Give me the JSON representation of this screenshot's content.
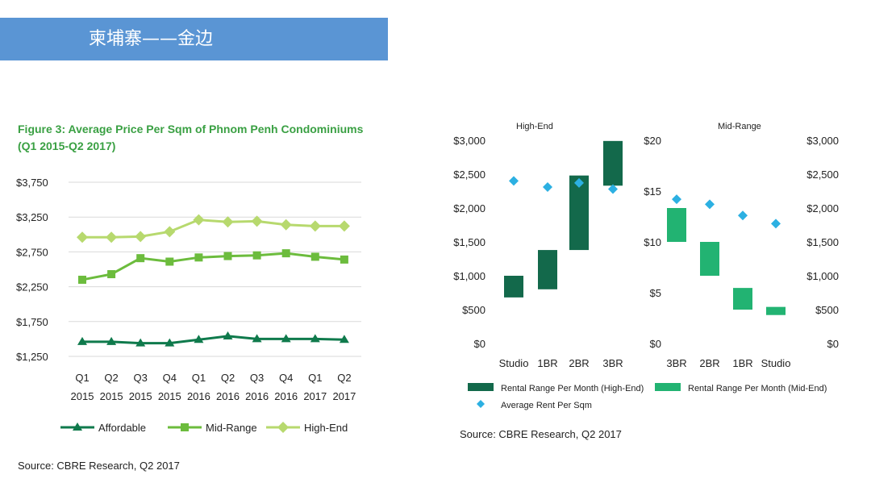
{
  "banner": {
    "title": "柬埔寨——金边"
  },
  "chart_data": [
    {
      "type": "line",
      "title": "Figure 3: Average Price Per Sqm of Phnom Penh Condominiums",
      "subtitle": "(Q1 2015-Q2 2017)",
      "categories": [
        [
          "Q1",
          "2015"
        ],
        [
          "Q2",
          "2015"
        ],
        [
          "Q3",
          "2015"
        ],
        [
          "Q4",
          "2015"
        ],
        [
          "Q1",
          "2016"
        ],
        [
          "Q2",
          "2016"
        ],
        [
          "Q3",
          "2016"
        ],
        [
          "Q4",
          "2016"
        ],
        [
          "Q1",
          "2017"
        ],
        [
          "Q2",
          "2017"
        ]
      ],
      "y_ticks": [
        1250,
        1750,
        2250,
        2750,
        3250,
        3750
      ],
      "y_tick_labels": [
        "$1,250",
        "$1,750",
        "$2,250",
        "$2,750",
        "$3,250",
        "$3,750"
      ],
      "ylim": [
        1250,
        3750
      ],
      "grid": true,
      "legend_position": "bottom",
      "series": [
        {
          "name": "Affordable",
          "color": "#0f7a4c",
          "marker": "triangle",
          "values": [
            1460,
            1460,
            1440,
            1440,
            1490,
            1540,
            1500,
            1500,
            1500,
            1490
          ]
        },
        {
          "name": "Mid-Range",
          "color": "#6cbc3d",
          "marker": "square",
          "values": [
            2350,
            2430,
            2660,
            2610,
            2670,
            2690,
            2700,
            2730,
            2680,
            2640
          ]
        },
        {
          "name": "High-End",
          "color": "#b7d96e",
          "marker": "diamond",
          "values": [
            2960,
            2960,
            2970,
            3040,
            3210,
            3180,
            3190,
            3140,
            3120,
            3120
          ]
        }
      ],
      "source": "Source: CBRE Research, Q2 2017"
    },
    {
      "type": "bar",
      "panel_title": "High-End",
      "categories": [
        "Studio",
        "1BR",
        "2BR",
        "3BR"
      ],
      "range_ylim": [
        0,
        3000
      ],
      "range_tick_labels": [
        "$0",
        "$500",
        "$1,000",
        "$1,500",
        "$2,000",
        "$2,500",
        "$3,000"
      ],
      "rent_ylim": [
        0,
        20
      ],
      "range_color": "#13694b",
      "marker_color": "#2cb0e2",
      "rental_range_per_month": [
        [
          680,
          1000
        ],
        [
          800,
          1380
        ],
        [
          1380,
          2480
        ],
        [
          2330,
          2990
        ]
      ],
      "average_rent_per_sqm": [
        16,
        15.4,
        15.8,
        15.2
      ]
    },
    {
      "type": "bar",
      "panel_title": "Mid-Range",
      "categories": [
        "3BR",
        "2BR",
        "1BR",
        "Studio"
      ],
      "rent_ylim": [
        0,
        20
      ],
      "rent_tick_labels": [
        "$0",
        "$5",
        "$10",
        "$15",
        "$20"
      ],
      "range_ylim": [
        0,
        3000
      ],
      "range_tick_labels": [
        "$0",
        "$500",
        "$1,000",
        "$1,500",
        "$2,000",
        "$2,500",
        "$3,000"
      ],
      "range_color": "#22b372",
      "marker_color": "#2cb0e2",
      "rental_range_per_month": [
        [
          1500,
          2000
        ],
        [
          1000,
          1500
        ],
        [
          500,
          820
        ],
        [
          420,
          540
        ]
      ],
      "average_rent_per_sqm": [
        14.2,
        13.7,
        12.6,
        11.8
      ]
    }
  ],
  "right_legend": {
    "items": [
      {
        "label": "Rental Range Per Month (High-End)",
        "color": "#13694b",
        "shape": "rect"
      },
      {
        "label": "Rental Range Per Month (Mid-End)",
        "color": "#22b372",
        "shape": "rect"
      },
      {
        "label": "Average Rent Per Sqm",
        "color": "#2cb0e2",
        "shape": "diamond"
      }
    ]
  },
  "right_source": "Source: CBRE Research, Q2 2017"
}
